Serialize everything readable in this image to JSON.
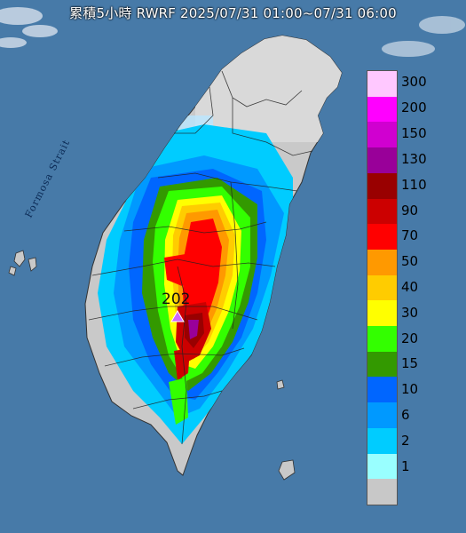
{
  "title": "累積5小時 RWRF 2025/07/31 01:00~07/31 06:00",
  "strait_label": "Formosa Strait",
  "peak": {
    "value": "202"
  },
  "legend": {
    "levels": [
      {
        "label": "300",
        "color": "#ffc8ff"
      },
      {
        "label": "200",
        "color": "#ff00ff"
      },
      {
        "label": "150",
        "color": "#d000d0"
      },
      {
        "label": "130",
        "color": "#990099"
      },
      {
        "label": "110",
        "color": "#990000"
      },
      {
        "label": "90",
        "color": "#cc0000"
      },
      {
        "label": "70",
        "color": "#ff0000"
      },
      {
        "label": "50",
        "color": "#ff9900"
      },
      {
        "label": "40",
        "color": "#ffcc00"
      },
      {
        "label": "30",
        "color": "#ffff00"
      },
      {
        "label": "20",
        "color": "#33ff00"
      },
      {
        "label": "15",
        "color": "#339900"
      },
      {
        "label": "10",
        "color": "#0066ff"
      },
      {
        "label": "6",
        "color": "#0099ff"
      },
      {
        "label": "2",
        "color": "#00ccff"
      },
      {
        "label": "1",
        "color": "#99ffff"
      },
      {
        "label": "",
        "color": "#c8c8c8"
      }
    ]
  },
  "land_color": "#c9c9c9",
  "sea_color": "#4f83b2"
}
